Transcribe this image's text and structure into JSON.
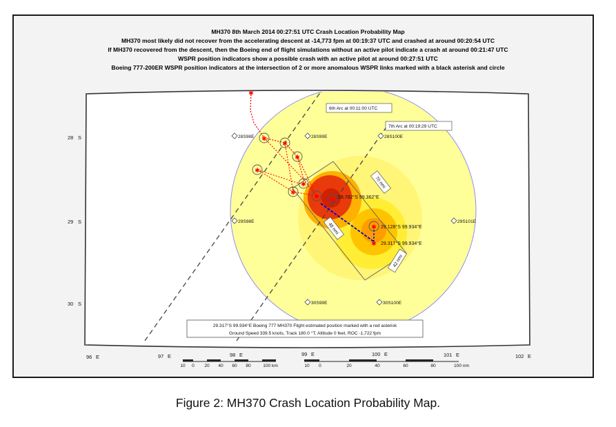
{
  "title_lines": [
    "MH370 8th March 2014 00:27:51 UTC Crash Location Probability Map",
    "MH370 most likely did not recover from the accelerating descent at -14,773 fpm at 00:19:37 UTC and crashed at around 00:20:54 UTC",
    "If MH370 recovered from the descent, then the Boeing end of flight simulations without an active pilot indicate a crash at around 00:21:47 UTC",
    "WSPR position indicators show a possible crash with an active pilot at around 00:27:51 UTC",
    "Boeing 777-200ER WSPR position indicators at the intersection of 2 or more anomalous WSPR links marked with a black asterisk and circle"
  ],
  "caption": "Figure 2: MH370 Crash Location Probability Map.",
  "axes": {
    "lat_ticks": [
      {
        "label": "28",
        "suffix": "S",
        "lat": -28
      },
      {
        "label": "29",
        "suffix": "S",
        "lat": -29
      },
      {
        "label": "30",
        "suffix": "S",
        "lat": -30
      }
    ],
    "lon_ticks": [
      {
        "label": "96",
        "suffix": "E",
        "lon": 96
      },
      {
        "label": "97",
        "suffix": "E",
        "lon": 97
      },
      {
        "label": "98",
        "suffix": "E",
        "lon": 98
      },
      {
        "label": "99",
        "suffix": "E",
        "lon": 99
      },
      {
        "label": "100",
        "suffix": "E",
        "lon": 100
      },
      {
        "label": "101",
        "suffix": "E",
        "lon": 101
      },
      {
        "label": "102",
        "suffix": "E",
        "lon": 102
      }
    ]
  },
  "grid_labels": [
    {
      "text": "28S98E",
      "lat": -28.0,
      "lon": 98.0
    },
    {
      "text": "28S99E",
      "lat": -28.0,
      "lon": 99.0
    },
    {
      "text": "28S100E",
      "lat": -28.0,
      "lon": 100.0
    },
    {
      "text": "29S98E",
      "lat": -29.0,
      "lon": 98.0
    },
    {
      "text": "29S101E",
      "lat": -29.0,
      "lon": 101.0
    },
    {
      "text": "30S99E",
      "lat": -30.0,
      "lon": 99.0
    },
    {
      "text": "30S100E",
      "lat": -30.0,
      "lon": 100.0
    }
  ],
  "arc_labels": {
    "arc6": "6th Arc at 00:11:00 UTC",
    "arc7": "7th Arc at 00:19:29 UTC"
  },
  "search_box_labels": {
    "top": "70 nmi",
    "left": "48 nmi",
    "right": "42 nmi"
  },
  "positions": [
    {
      "text": "28.782°S 99.362°E",
      "lat": -28.782,
      "lon": 99.362
    },
    {
      "text": "29.128°S 99.934°E",
      "lat": -29.128,
      "lon": 99.934
    },
    {
      "text": "29.317°S 99.934°E",
      "lat": -29.317,
      "lon": 99.934
    }
  ],
  "info_box": {
    "line1": "29.317°S 99.934°E Boeing 777 MH370 Flight estimated position marked with a red asterisk",
    "line2": "Ground Speed 339.5 knots, Track 180.0 °T, Altitude 0 feet, ROC -1,722 fpm"
  },
  "scale_km": {
    "ticks": [
      "10",
      "0",
      "20",
      "40",
      "60",
      "80",
      "100 km"
    ]
  },
  "scale_nm": {
    "ticks": [
      "10",
      "0",
      "20",
      "40",
      "60",
      "80",
      "100 nm"
    ]
  },
  "colors": {
    "zone_outer": "#ffff99",
    "zone_mid": "#ffee55",
    "zone_orange": "#ffaa00",
    "zone_red": "#e83a0a",
    "track": "#ff0000",
    "crash_line": "#0000cc",
    "circle_edge": "#8080ff"
  }
}
